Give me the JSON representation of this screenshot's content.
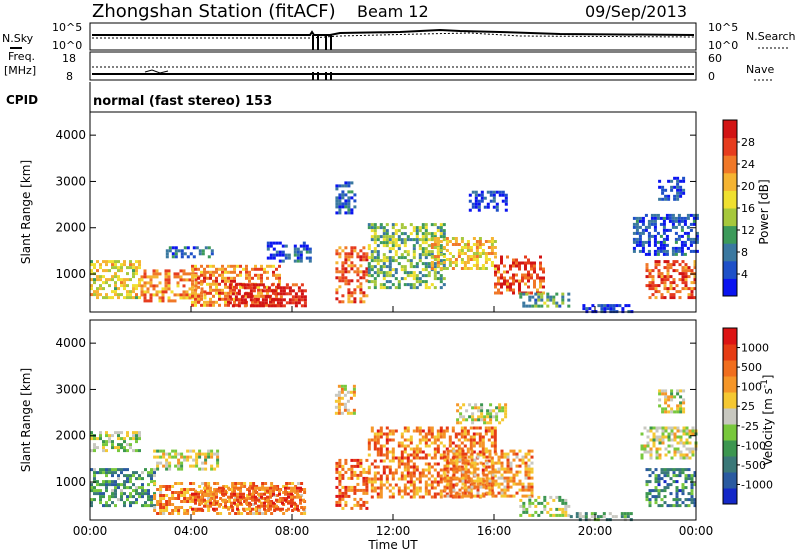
{
  "header": {
    "station": "Zhongshan Station (fitACF)",
    "beam": "Beam 12",
    "date": "09/Sep/2013"
  },
  "noise_panel": {
    "left_label": "N.Sky",
    "right_label": "N.Search",
    "left_ticks": [
      "10^5",
      "10^0"
    ],
    "right_ticks": [
      "10^5",
      "10^0"
    ]
  },
  "freq_panel": {
    "left_label_1": "Freq.",
    "left_label_2": "[MHz]",
    "left_ticks": [
      "18",
      "8"
    ],
    "right_label": "Nave",
    "right_ticks": [
      "60",
      "0"
    ]
  },
  "cpid": {
    "label": "CPID",
    "text": "normal (fast stereo) 153"
  },
  "chart_data": [
    {
      "type": "heatmap",
      "name": "power",
      "ylabel": "Slant Range [km]",
      "xlabel": "",
      "ylim": [
        180,
        4500
      ],
      "yticks": [
        1000,
        2000,
        3000,
        4000
      ],
      "xlim": [
        0,
        24
      ],
      "colorbar": {
        "label": "Power [dB]",
        "ticks": [
          "28",
          "24",
          "20",
          "16",
          "12",
          "8",
          "4"
        ],
        "colors": [
          "#0a14f0",
          "#1e50c8",
          "#3a78a0",
          "#3c9a5a",
          "#a6c83c",
          "#f0e030",
          "#f5b432",
          "#f07828",
          "#e63c1e",
          "#d21414"
        ]
      },
      "regions": [
        {
          "t": [
            0.0,
            2.0
          ],
          "r": [
            500,
            1300
          ],
          "level": 0.55
        },
        {
          "t": [
            2.0,
            4.5
          ],
          "r": [
            400,
            1100
          ],
          "level": 0.7
        },
        {
          "t": [
            3.0,
            5.0
          ],
          "r": [
            1350,
            1600
          ],
          "level": 0.2
        },
        {
          "t": [
            4.0,
            7.5
          ],
          "r": [
            300,
            1200
          ],
          "level": 0.75
        },
        {
          "t": [
            5.5,
            8.5
          ],
          "r": [
            300,
            800
          ],
          "level": 0.95
        },
        {
          "t": [
            7.0,
            9.0
          ],
          "r": [
            1300,
            1700
          ],
          "level": 0.15
        },
        {
          "t": [
            9.6,
            11.0
          ],
          "r": [
            400,
            1600
          ],
          "level": 0.8
        },
        {
          "t": [
            9.6,
            10.5
          ],
          "r": [
            2300,
            3000
          ],
          "level": 0.15
        },
        {
          "t": [
            11.0,
            14.0
          ],
          "r": [
            700,
            2100
          ],
          "level": 0.4
        },
        {
          "t": [
            13.5,
            16.0
          ],
          "r": [
            1100,
            1800
          ],
          "level": 0.6
        },
        {
          "t": [
            15.0,
            16.5
          ],
          "r": [
            2400,
            2800
          ],
          "level": 0.1
        },
        {
          "t": [
            16.0,
            18.0
          ],
          "r": [
            600,
            1400
          ],
          "level": 0.85
        },
        {
          "t": [
            17.0,
            19.0
          ],
          "r": [
            300,
            600
          ],
          "level": 0.35
        },
        {
          "t": [
            19.5,
            21.5
          ],
          "r": [
            200,
            350
          ],
          "level": 0.1
        },
        {
          "t": [
            22.0,
            24.0
          ],
          "r": [
            500,
            1300
          ],
          "level": 0.8
        },
        {
          "t": [
            21.5,
            24.0
          ],
          "r": [
            1400,
            2300
          ],
          "level": 0.15
        },
        {
          "t": [
            22.5,
            23.5
          ],
          "r": [
            2600,
            3100
          ],
          "level": 0.1
        }
      ]
    },
    {
      "type": "heatmap",
      "name": "velocity",
      "ylabel": "Slant Range [km]",
      "xlabel": "Time UT",
      "ylim": [
        180,
        4500
      ],
      "yticks": [
        1000,
        2000,
        3000,
        4000
      ],
      "xlim": [
        0,
        24
      ],
      "xticks": [
        "00:00",
        "04:00",
        "08:00",
        "12:00",
        "16:00",
        "20:00",
        "00:00"
      ],
      "colorbar": {
        "label": "Velocity [m s^-1]",
        "ticks": [
          "1000",
          "500",
          "100",
          "25",
          "-25",
          "-100",
          "-500",
          "-1000"
        ],
        "colors": [
          "#1428c8",
          "#2a5aa0",
          "#3a7878",
          "#3c9650",
          "#78c83c",
          "#c8c8c0",
          "#f5c832",
          "#f59628",
          "#f06e1e",
          "#e63c14",
          "#dc1414"
        ]
      },
      "regions": [
        {
          "t": [
            0.0,
            2.5
          ],
          "r": [
            500,
            1300
          ],
          "level": 0.3
        },
        {
          "t": [
            2.5,
            5.0
          ],
          "r": [
            1300,
            1700
          ],
          "level": 0.5
        },
        {
          "t": [
            0.0,
            2.0
          ],
          "r": [
            1700,
            2100
          ],
          "level": 0.45
        },
        {
          "t": [
            2.5,
            8.5
          ],
          "r": [
            300,
            1000
          ],
          "level": 0.7
        },
        {
          "t": [
            4.0,
            8.5
          ],
          "r": [
            400,
            900
          ],
          "level": 0.8
        },
        {
          "t": [
            9.6,
            11.0
          ],
          "r": [
            400,
            1500
          ],
          "level": 0.78
        },
        {
          "t": [
            9.7,
            10.5
          ],
          "r": [
            2500,
            3100
          ],
          "level": 0.6
        },
        {
          "t": [
            11.0,
            16.0
          ],
          "r": [
            700,
            2200
          ],
          "level": 0.75
        },
        {
          "t": [
            14.0,
            17.5
          ],
          "r": [
            700,
            1700
          ],
          "level": 0.68
        },
        {
          "t": [
            14.5,
            16.5
          ],
          "r": [
            2300,
            2700
          ],
          "level": 0.5
        },
        {
          "t": [
            17.0,
            19.0
          ],
          "r": [
            300,
            700
          ],
          "level": 0.45
        },
        {
          "t": [
            19.0,
            21.5
          ],
          "r": [
            200,
            350
          ],
          "level": 0.35
        },
        {
          "t": [
            22.0,
            24.0
          ],
          "r": [
            500,
            1300
          ],
          "level": 0.25
        },
        {
          "t": [
            21.8,
            24.0
          ],
          "r": [
            1500,
            2200
          ],
          "level": 0.5
        },
        {
          "t": [
            22.5,
            23.5
          ],
          "r": [
            2500,
            3000
          ],
          "level": 0.5
        }
      ]
    }
  ]
}
